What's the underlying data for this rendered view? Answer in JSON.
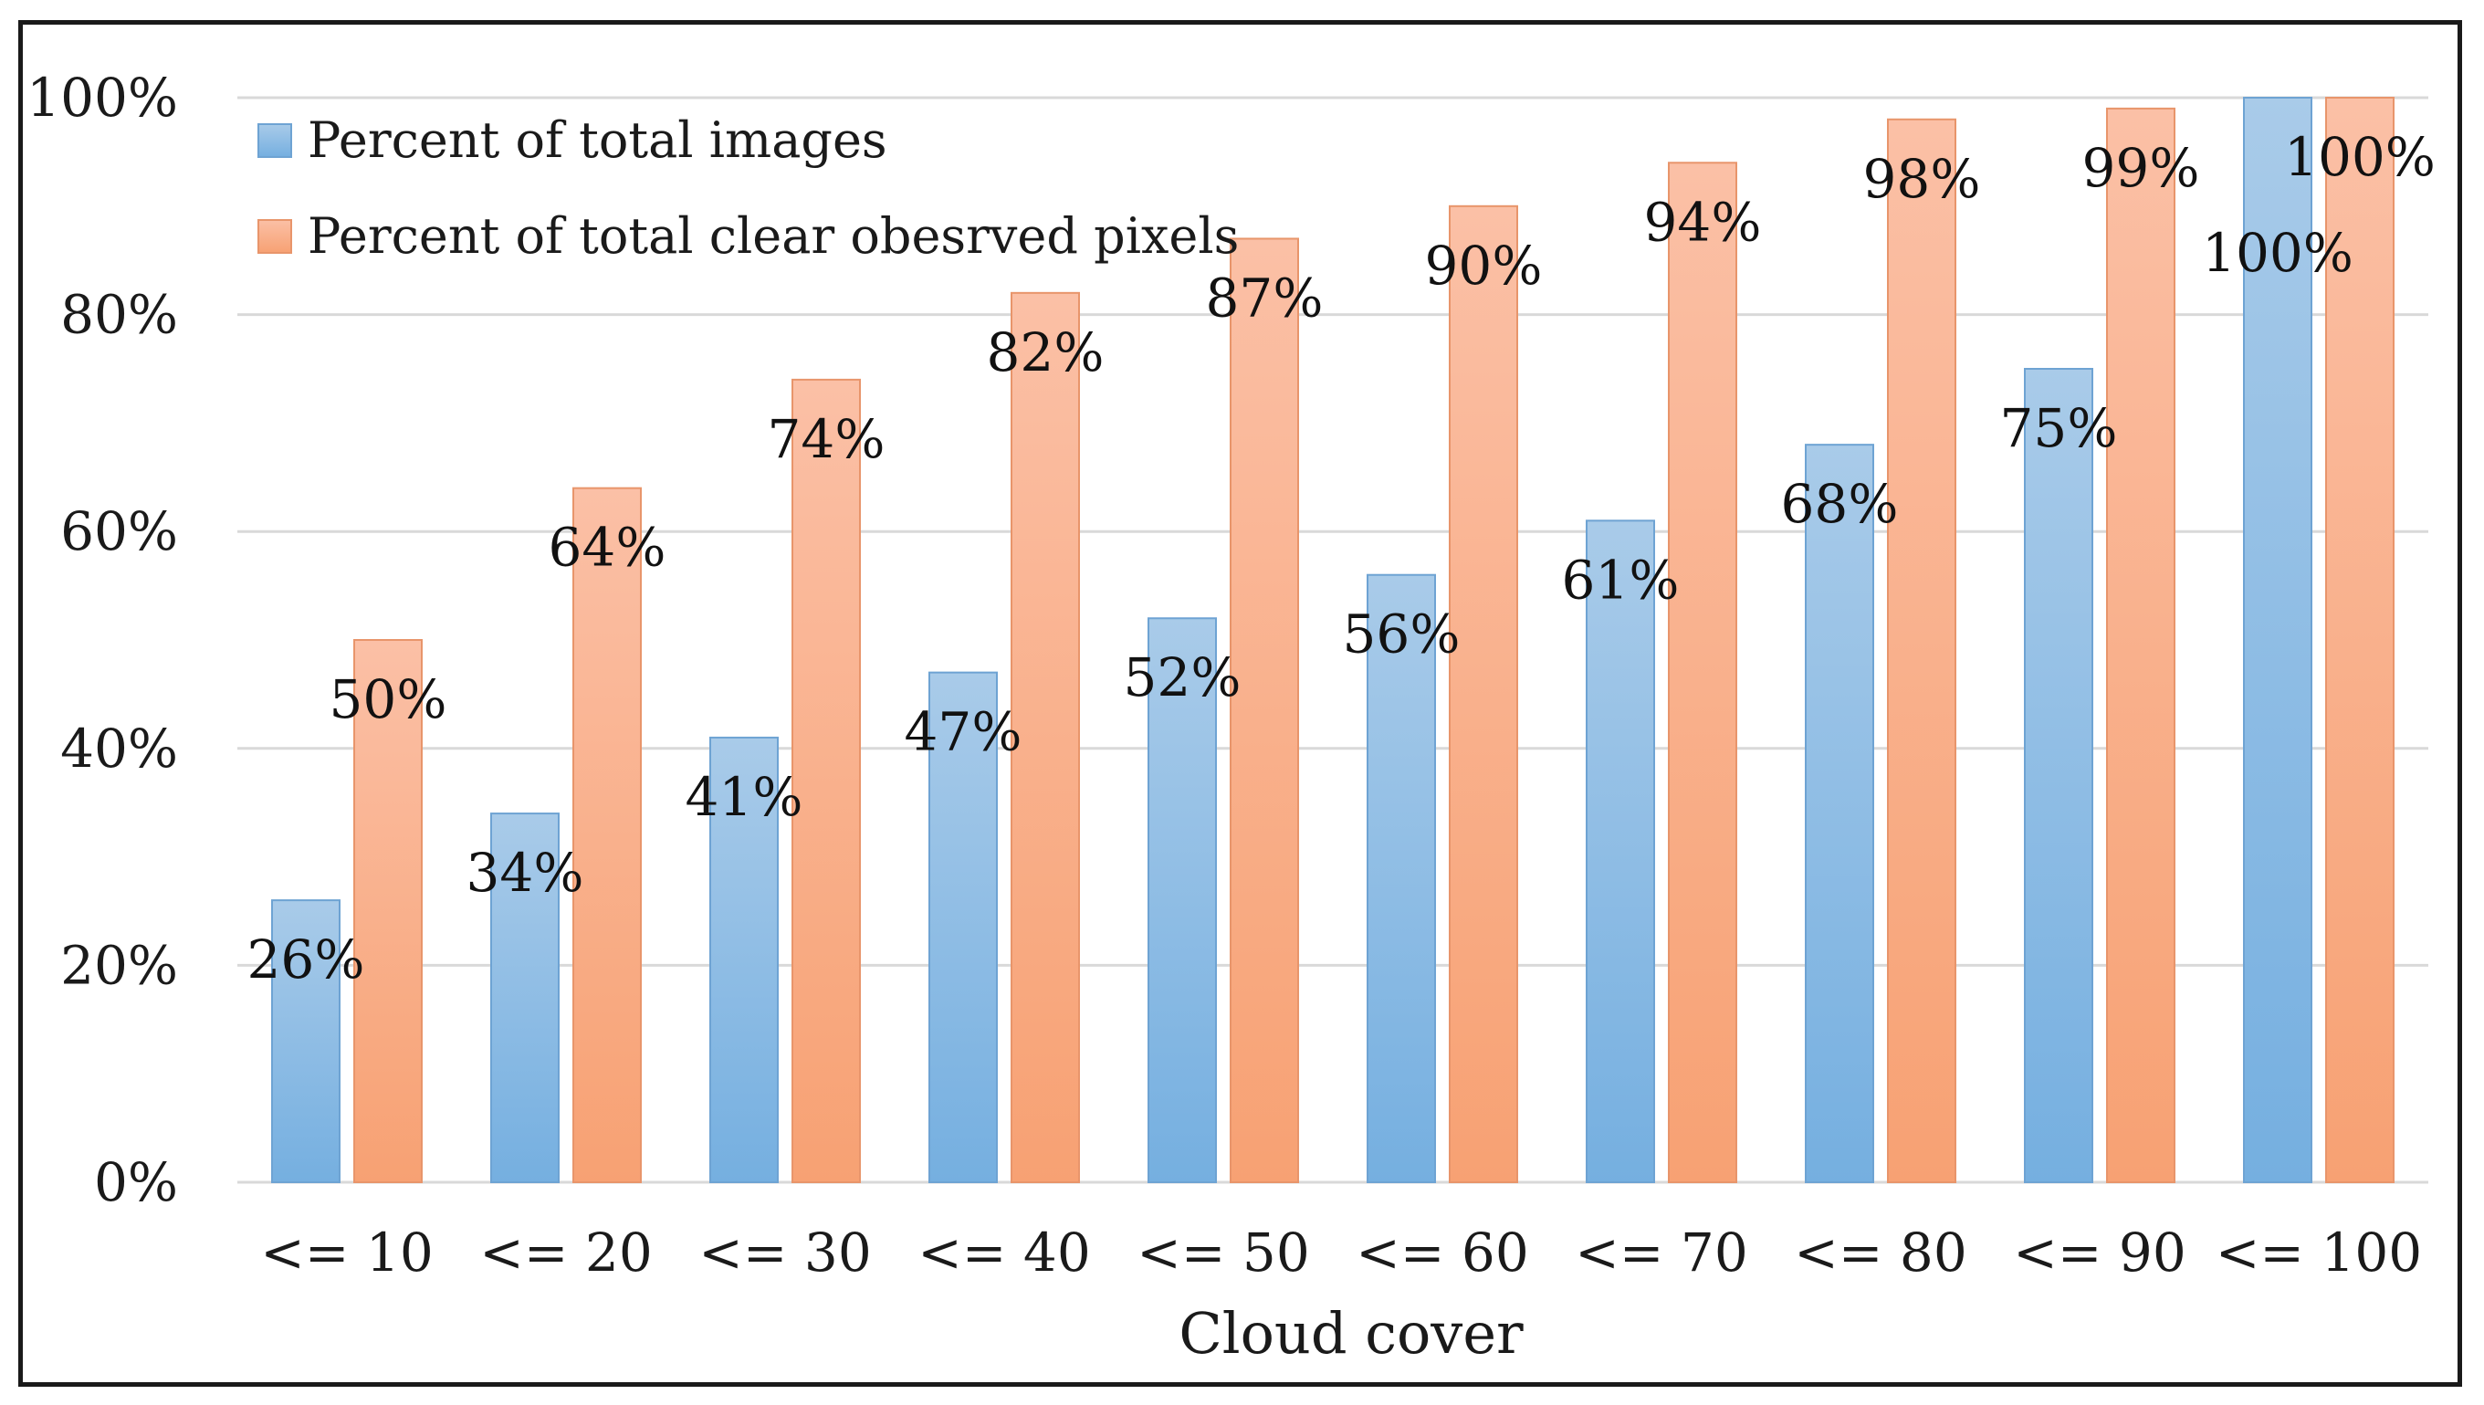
{
  "chart_data": {
    "type": "bar",
    "categories": [
      "<= 10",
      "<= 20",
      "<= 30",
      "<= 40",
      "<= 50",
      "<= 60",
      "<= 70",
      "<= 80",
      "<= 90",
      "<= 100"
    ],
    "series": [
      {
        "name": "Percent of total images",
        "values": [
          26,
          34,
          41,
          47,
          52,
          56,
          61,
          68,
          75,
          100
        ],
        "labels": [
          "26%",
          "34%",
          "41%",
          "47%",
          "52%",
          "56%",
          "61%",
          "68%",
          "75%",
          "100%"
        ],
        "color_top": "#a9cbe9",
        "color_bottom": "#75afe0",
        "stroke": "#6ea3d3"
      },
      {
        "name": "Percent of total clear obesrved pixels",
        "values": [
          50,
          64,
          74,
          82,
          87,
          90,
          94,
          98,
          99,
          100
        ],
        "labels": [
          "50%",
          "64%",
          "74%",
          "82%",
          "87%",
          "90%",
          "94%",
          "98%",
          "99%",
          "100%"
        ],
        "color_top": "#fbc0a6",
        "color_bottom": "#f7a173",
        "stroke": "#e8956b"
      }
    ],
    "xlabel": "Cloud cover",
    "ylabel": "",
    "ylim": [
      0,
      100
    ],
    "yticks": [
      "0%",
      "20%",
      "40%",
      "60%",
      "80%",
      "100%"
    ],
    "ytick_values": [
      0,
      20,
      40,
      60,
      80,
      100
    ],
    "grid": true,
    "legend_position": "top-left",
    "gridline_color": "#d9d9d9"
  }
}
